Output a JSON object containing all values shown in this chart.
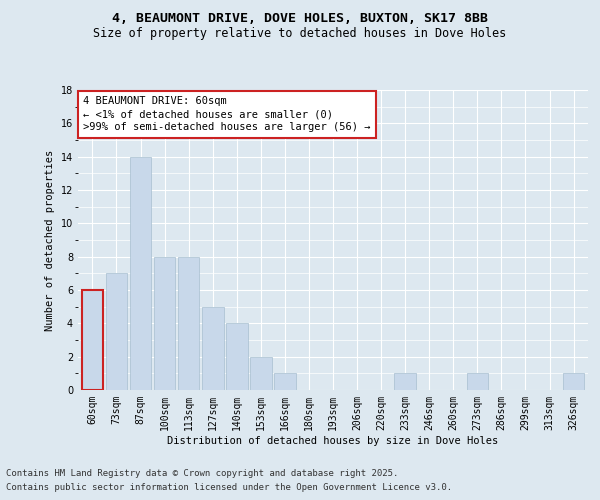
{
  "title_line1": "4, BEAUMONT DRIVE, DOVE HOLES, BUXTON, SK17 8BB",
  "title_line2": "Size of property relative to detached houses in Dove Holes",
  "xlabel": "Distribution of detached houses by size in Dove Holes",
  "ylabel": "Number of detached properties",
  "categories": [
    "60sqm",
    "73sqm",
    "87sqm",
    "100sqm",
    "113sqm",
    "127sqm",
    "140sqm",
    "153sqm",
    "166sqm",
    "180sqm",
    "193sqm",
    "206sqm",
    "220sqm",
    "233sqm",
    "246sqm",
    "260sqm",
    "273sqm",
    "286sqm",
    "299sqm",
    "313sqm",
    "326sqm"
  ],
  "values": [
    6,
    7,
    14,
    8,
    8,
    5,
    4,
    2,
    1,
    0,
    0,
    0,
    0,
    1,
    0,
    0,
    1,
    0,
    0,
    0,
    1
  ],
  "bar_color": "#c8d8ea",
  "bar_edge_color": "#a8bfd0",
  "highlight_bar_index": 0,
  "highlight_edge_color": "#cc2222",
  "annotation_text": "4 BEAUMONT DRIVE: 60sqm\n← <1% of detached houses are smaller (0)\n>99% of semi-detached houses are larger (56) →",
  "annotation_box_color": "#ffffff",
  "annotation_edge_color": "#cc2222",
  "ylim": [
    0,
    18
  ],
  "yticks": [
    0,
    2,
    4,
    6,
    8,
    10,
    12,
    14,
    16,
    18
  ],
  "bg_color": "#dde8f0",
  "footnote_line1": "Contains HM Land Registry data © Crown copyright and database right 2025.",
  "footnote_line2": "Contains public sector information licensed under the Open Government Licence v3.0.",
  "title_fontsize": 9.5,
  "subtitle_fontsize": 8.5,
  "axis_label_fontsize": 7.5,
  "tick_fontsize": 7,
  "annotation_fontsize": 7.5,
  "footnote_fontsize": 6.5
}
